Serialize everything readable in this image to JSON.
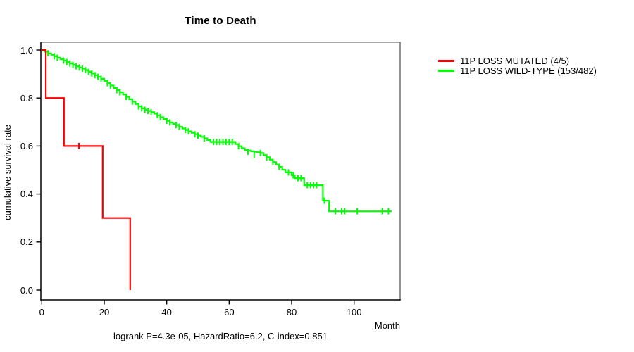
{
  "title": "Time to Death",
  "footer": "logrank P=4.3e-05, HazardRatio=6.2, C-index=0.851",
  "x_axis": {
    "label": "Month",
    "ticks": [
      0,
      20,
      40,
      60,
      80,
      100
    ]
  },
  "y_axis": {
    "label": "cumulative survival rate",
    "ticks": [
      {
        "label": "1.0",
        "value": 1.0
      },
      {
        "label": "0.8",
        "value": 0.8
      },
      {
        "label": "0.6",
        "value": 0.6
      },
      {
        "label": "0.4",
        "value": 0.4
      },
      {
        "label": "0.2",
        "value": 0.2
      },
      {
        "label": "0.0",
        "value": 0.0
      }
    ]
  },
  "legend": {
    "items": [
      {
        "label": "11P LOSS MUTATED (4/5)",
        "color": "#ff0000"
      },
      {
        "label": "11P LOSS WILD-TYPE (153/482)",
        "color": "#00ff00"
      }
    ]
  },
  "colors": {
    "box_top": "#8a8a8a",
    "box_right": "#707070",
    "axis": "#000000"
  },
  "chart_data": {
    "type": "line",
    "subtype": "kaplan-meier-step",
    "title": "Time to Death",
    "xlabel": "Month",
    "ylabel": "cumulative survival rate",
    "xlim": [
      0,
      115
    ],
    "ylim": [
      0.0,
      1.0
    ],
    "grid": false,
    "legend_position": "right-outside",
    "annotation": "logrank P=4.3e-05, HazardRatio=6.2, C-index=0.851",
    "series": [
      {
        "name": "11P LOSS MUTATED (4/5)",
        "color": "#ff0000",
        "n_events": "4/5",
        "steps": [
          [
            0,
            1.0
          ],
          [
            1.3,
            0.8
          ],
          [
            7.1,
            0.6
          ],
          [
            19.5,
            0.3
          ],
          [
            28.3,
            0.0
          ]
        ],
        "end_month": 28.3,
        "censor_marks": [
          [
            11.9,
            0.6
          ]
        ]
      },
      {
        "name": "11P LOSS WILD-TYPE (153/482)",
        "color": "#00ff00",
        "n_events": "153/482",
        "steps": [
          [
            0,
            1.0
          ],
          [
            1,
            0.993
          ],
          [
            2,
            0.986
          ],
          [
            3,
            0.98
          ],
          [
            4,
            0.974
          ],
          [
            5,
            0.968
          ],
          [
            6,
            0.962
          ],
          [
            7,
            0.956
          ],
          [
            8,
            0.95
          ],
          [
            9,
            0.944
          ],
          [
            10,
            0.938
          ],
          [
            11,
            0.932
          ],
          [
            12,
            0.927
          ],
          [
            13,
            0.922
          ],
          [
            14,
            0.916
          ],
          [
            15,
            0.909
          ],
          [
            16,
            0.902
          ],
          [
            17,
            0.895
          ],
          [
            18,
            0.888
          ],
          [
            19,
            0.88
          ],
          [
            20,
            0.871
          ],
          [
            21,
            0.862
          ],
          [
            22,
            0.852
          ],
          [
            23,
            0.842
          ],
          [
            24,
            0.833
          ],
          [
            25,
            0.824
          ],
          [
            26,
            0.815
          ],
          [
            27,
            0.805
          ],
          [
            28,
            0.795
          ],
          [
            29,
            0.785
          ],
          [
            30,
            0.775
          ],
          [
            31,
            0.765
          ],
          [
            32,
            0.757
          ],
          [
            33,
            0.751
          ],
          [
            34,
            0.746
          ],
          [
            35,
            0.741
          ],
          [
            36,
            0.735
          ],
          [
            37,
            0.728
          ],
          [
            38,
            0.72
          ],
          [
            39,
            0.712
          ],
          [
            40,
            0.705
          ],
          [
            41,
            0.698
          ],
          [
            42,
            0.692
          ],
          [
            43,
            0.687
          ],
          [
            44,
            0.68
          ],
          [
            45,
            0.673
          ],
          [
            46,
            0.667
          ],
          [
            47,
            0.661
          ],
          [
            48,
            0.655
          ],
          [
            49,
            0.649
          ],
          [
            50,
            0.643
          ],
          [
            51,
            0.638
          ],
          [
            52,
            0.632
          ],
          [
            53,
            0.625
          ],
          [
            54,
            0.617
          ],
          [
            62,
            0.608
          ],
          [
            63,
            0.599
          ],
          [
            64,
            0.591
          ],
          [
            65,
            0.583
          ],
          [
            66,
            0.581
          ],
          [
            67,
            0.578
          ],
          [
            68,
            0.576
          ],
          [
            69,
            0.574
          ],
          [
            70,
            0.571
          ],
          [
            71,
            0.562
          ],
          [
            72,
            0.553
          ],
          [
            73,
            0.543
          ],
          [
            74,
            0.533
          ],
          [
            75,
            0.523
          ],
          [
            76,
            0.513
          ],
          [
            77,
            0.501
          ],
          [
            78,
            0.49
          ],
          [
            80,
            0.478
          ],
          [
            81,
            0.466
          ],
          [
            84,
            0.437
          ],
          [
            90,
            0.372
          ],
          [
            92,
            0.328
          ]
        ],
        "end_month": 112,
        "censor_marks": [
          [
            2,
            0.986
          ],
          [
            4,
            0.974
          ],
          [
            5,
            0.968
          ],
          [
            7,
            0.956
          ],
          [
            8,
            0.95
          ],
          [
            9,
            0.944
          ],
          [
            10,
            0.938
          ],
          [
            11,
            0.932
          ],
          [
            12,
            0.927
          ],
          [
            13,
            0.922
          ],
          [
            14,
            0.916
          ],
          [
            15,
            0.909
          ],
          [
            16,
            0.902
          ],
          [
            17,
            0.895
          ],
          [
            18,
            0.888
          ],
          [
            19,
            0.88
          ],
          [
            21,
            0.862
          ],
          [
            22,
            0.852
          ],
          [
            24,
            0.833
          ],
          [
            25,
            0.824
          ],
          [
            27,
            0.805
          ],
          [
            29,
            0.785
          ],
          [
            31,
            0.765
          ],
          [
            32,
            0.757
          ],
          [
            33,
            0.751
          ],
          [
            34,
            0.746
          ],
          [
            35,
            0.741
          ],
          [
            37,
            0.728
          ],
          [
            38,
            0.72
          ],
          [
            40,
            0.705
          ],
          [
            41,
            0.698
          ],
          [
            43,
            0.687
          ],
          [
            44,
            0.68
          ],
          [
            46,
            0.667
          ],
          [
            47,
            0.661
          ],
          [
            49,
            0.649
          ],
          [
            50,
            0.643
          ],
          [
            52,
            0.632
          ],
          [
            55,
            0.617
          ],
          [
            56,
            0.617
          ],
          [
            57,
            0.617
          ],
          [
            58,
            0.617
          ],
          [
            59,
            0.617
          ],
          [
            60,
            0.617
          ],
          [
            61,
            0.617
          ],
          [
            63,
            0.599
          ],
          [
            66,
            0.576
          ],
          [
            68,
            0.562
          ],
          [
            70,
            0.571
          ],
          [
            72,
            0.553
          ],
          [
            74,
            0.533
          ],
          [
            76,
            0.513
          ],
          [
            79,
            0.49
          ],
          [
            80.5,
            0.478
          ],
          [
            82,
            0.466
          ],
          [
            83,
            0.466
          ],
          [
            85,
            0.437
          ],
          [
            86,
            0.437
          ],
          [
            87,
            0.437
          ],
          [
            88,
            0.437
          ],
          [
            90.5,
            0.372
          ],
          [
            94,
            0.328
          ],
          [
            96,
            0.328
          ],
          [
            97,
            0.328
          ],
          [
            101,
            0.328
          ],
          [
            109,
            0.328
          ],
          [
            111,
            0.328
          ]
        ]
      }
    ]
  }
}
